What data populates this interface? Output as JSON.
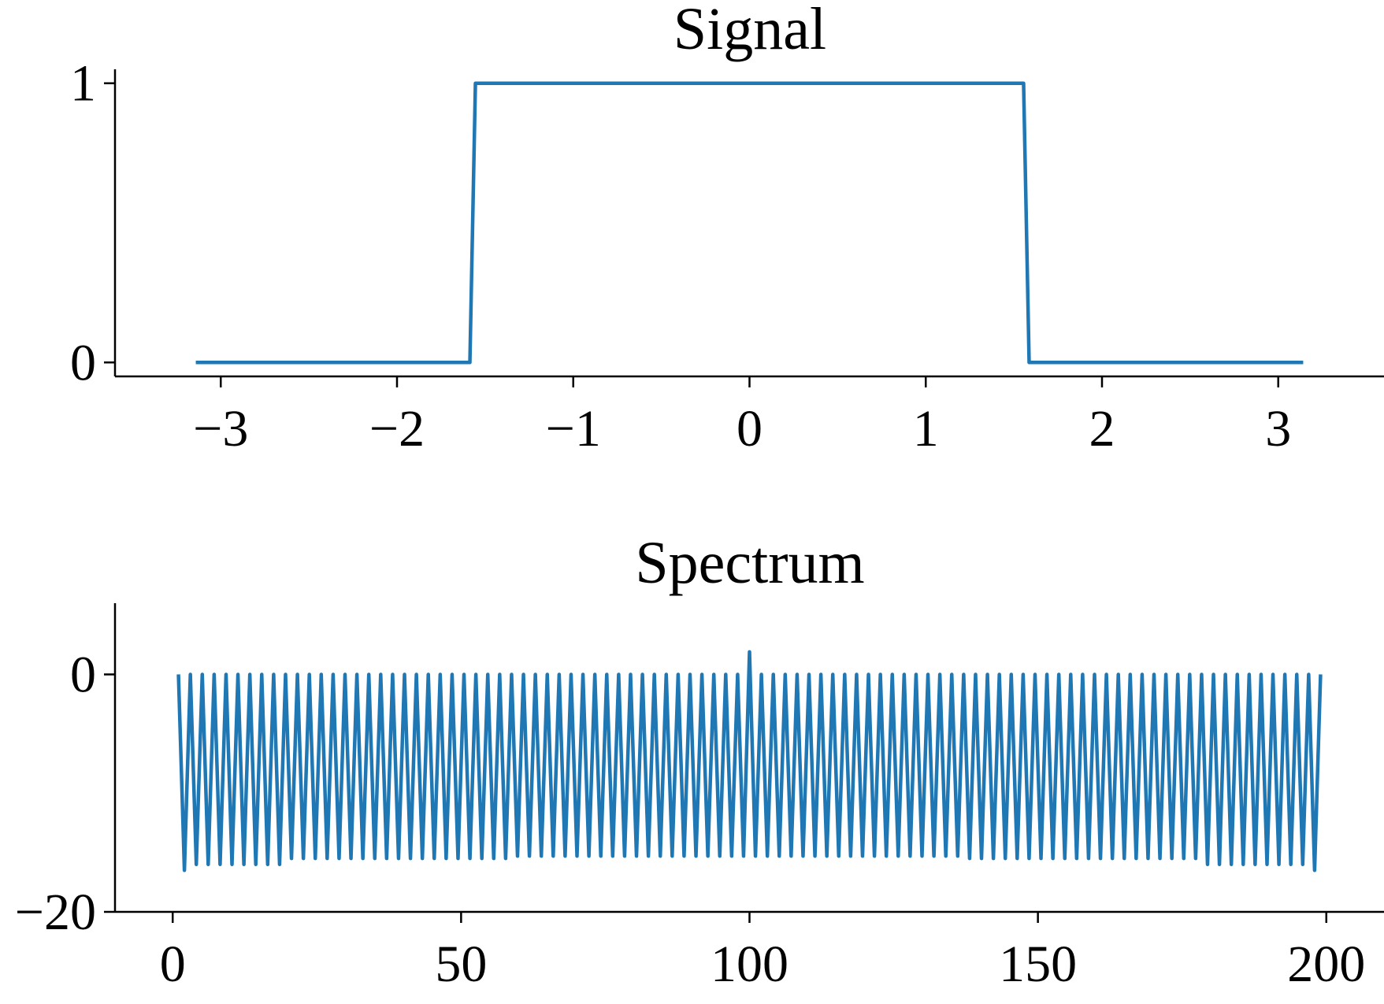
{
  "colors": {
    "series": "#1f77b4",
    "axis": "#000000",
    "background": "#ffffff"
  },
  "chart_data": [
    {
      "type": "line",
      "title": "Signal",
      "xlabel": "",
      "ylabel": "",
      "xlim": [
        -3.6,
        3.6
      ],
      "ylim": [
        -0.05,
        1.05
      ],
      "xticks": [
        -3,
        -2,
        -1,
        0,
        1,
        2,
        3
      ],
      "xtick_labels": [
        "−3",
        "−2",
        "−1",
        "0",
        "1",
        "2",
        "3"
      ],
      "yticks": [
        0,
        1
      ],
      "ytick_labels": [
        "0",
        "1"
      ],
      "grid": false,
      "series": [
        {
          "x": [
            -3.1416,
            -1.5865,
            -1.5551,
            1.5551,
            1.5865,
            3.1416
          ],
          "y": [
            0,
            0,
            1,
            1,
            0,
            0
          ]
        }
      ]
    },
    {
      "type": "line",
      "title": "Spectrum",
      "xlabel": "",
      "ylabel": "",
      "xlim": [
        -10,
        210
      ],
      "ylim": [
        -20,
        6
      ],
      "xticks": [
        0,
        50,
        100,
        150,
        200
      ],
      "xtick_labels": [
        "0",
        "50",
        "100",
        "150",
        "200"
      ],
      "yticks": [
        -20,
        0
      ],
      "ytick_labels": [
        "−20",
        "0"
      ],
      "grid": false,
      "series": [
        {
          "x_start": 1,
          "x_end": 199,
          "y": [
            0,
            -16.5,
            0,
            -16,
            0,
            -16,
            0,
            -16,
            0,
            -16,
            0,
            -16,
            0,
            -16,
            0,
            -16,
            0,
            -16,
            0,
            -15.5,
            0,
            -15.5,
            0,
            -15.5,
            0,
            -15.5,
            0,
            -15.5,
            0,
            -15.5,
            0,
            -15.5,
            0,
            -15.5,
            0,
            -15.5,
            0,
            -15.5,
            0,
            -15.5,
            0,
            -15.5,
            0,
            -15.5,
            0,
            -15.5,
            0,
            -15.5,
            0,
            -15.5,
            0,
            -15.5,
            0,
            -15.5,
            0,
            -15.5,
            0,
            -15.3,
            0,
            -15.3,
            0,
            -15.3,
            0,
            -15.3,
            0,
            -15.3,
            0,
            -15.3,
            0,
            -15.3,
            0,
            -15.3,
            0,
            -15.3,
            0,
            -15.3,
            0,
            -15.3,
            0,
            -15.3,
            0,
            -15.3,
            0,
            -15.3,
            0,
            -15.3,
            0,
            -15.3,
            0,
            -15.3,
            0,
            -15.3,
            0,
            -15.3,
            0,
            -15.3,
            0,
            -15.3,
            0,
            -15.3,
            0,
            -15.3,
            0,
            -15.3,
            0,
            -15.3,
            0,
            -15.3,
            0,
            -15.3,
            0,
            -15.3,
            0,
            -15.3,
            0,
            -15.3,
            0,
            -15.3,
            0,
            -15.3,
            0,
            -15.3,
            0,
            -15.3,
            0,
            -15.3,
            0,
            -15.3,
            0,
            -15.3,
            0,
            -15.3,
            0,
            -15.5,
            0,
            -15.5,
            0,
            -15.5,
            0,
            -15.5,
            0,
            -15.5,
            0,
            -15.5,
            0,
            -15.5,
            0,
            -15.5,
            0,
            -15.5,
            0,
            -15.5,
            0,
            -15.5,
            0,
            -15.5,
            0,
            -15.5,
            0,
            -15.5,
            0,
            -15.5,
            0,
            -15.5,
            0,
            -15.5,
            0,
            -15.5,
            0,
            -15.5,
            0,
            -15.5,
            0,
            -16,
            0,
            -16,
            0,
            -16,
            0,
            -16,
            0,
            -16,
            0,
            -16,
            0,
            -16,
            0,
            -16,
            0,
            -16,
            0,
            -16.5,
            0
          ]
        }
      ],
      "annotations": [
        {
          "x": 100,
          "y": 1.9,
          "note": "small peak at center"
        }
      ]
    }
  ]
}
